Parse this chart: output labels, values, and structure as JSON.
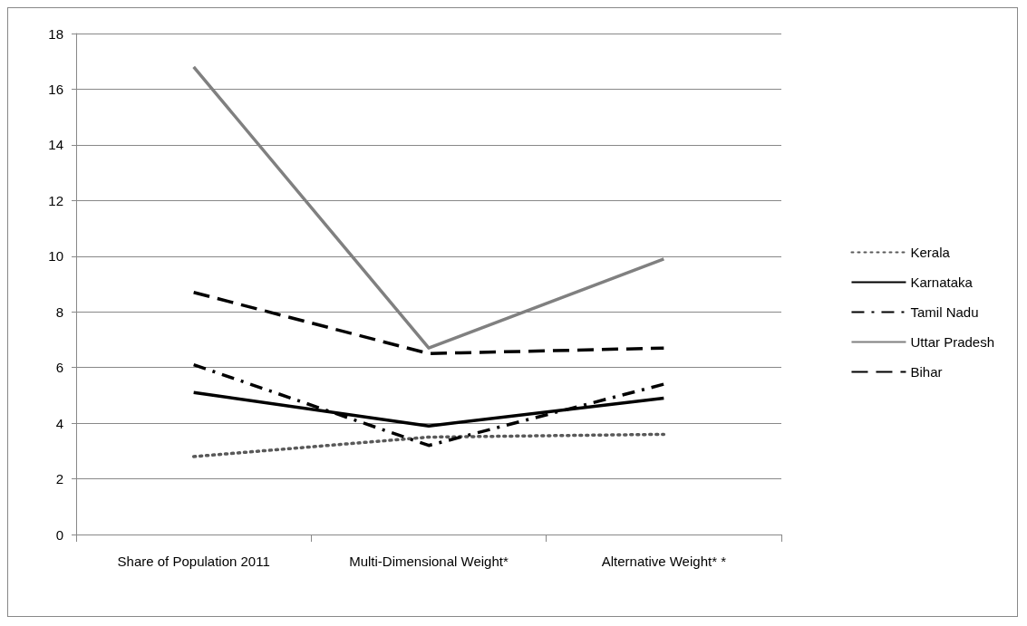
{
  "chart_data": {
    "type": "line",
    "categories": [
      "Share of Population 2011",
      "Multi-Dimensional Weight*",
      "Alternative Weight* *"
    ],
    "series": [
      {
        "name": "Kerala",
        "color": "#595959",
        "line_style": "dotted",
        "values": [
          2.8,
          3.5,
          3.6
        ]
      },
      {
        "name": "Karnataka",
        "color": "#000000",
        "line_style": "solid",
        "values": [
          5.1,
          3.9,
          4.9
        ]
      },
      {
        "name": "Tamil Nadu",
        "color": "#000000",
        "line_style": "dashdot",
        "values": [
          6.1,
          3.2,
          5.4
        ]
      },
      {
        "name": "Uttar Pradesh",
        "color": "#808080",
        "line_style": "solid",
        "values": [
          16.8,
          6.7,
          9.9
        ]
      },
      {
        "name": "Bihar",
        "color": "#000000",
        "line_style": "dashed",
        "values": [
          8.7,
          6.5,
          6.7
        ]
      }
    ],
    "ylim": [
      0,
      18
    ],
    "yticks": [
      0,
      2,
      4,
      6,
      8,
      10,
      12,
      14,
      16,
      18
    ],
    "grid": "y",
    "legend": "right",
    "marker": "none"
  }
}
